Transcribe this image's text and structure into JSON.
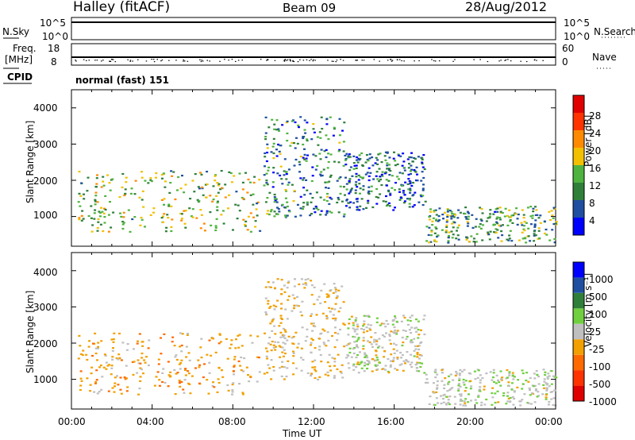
{
  "header": {
    "station": "Halley (fitACF)",
    "beam": "Beam 09",
    "date": "28/Aug/2012"
  },
  "noise_panel": {
    "left_label": "N.Sky",
    "left_ticks": [
      "10^5",
      "10^0"
    ],
    "right_ticks": [
      "10^5",
      "10^0"
    ],
    "right_label": "N.Search"
  },
  "freq_panel": {
    "left_label_1": "Freq.",
    "left_label_2": "[MHz]",
    "left_ticks": [
      "18",
      "8"
    ],
    "right_ticks": [
      "60",
      "0"
    ],
    "right_label": "Nave"
  },
  "cpid": {
    "label": "CPID",
    "value": "normal (fast) 151"
  },
  "x_axis": {
    "title": "Time UT",
    "ticks": [
      "00:00",
      "04:00",
      "08:00",
      "12:00",
      "16:00",
      "20:00",
      "00:00"
    ]
  },
  "chart_data": [
    {
      "type": "heatmap",
      "title": "Power",
      "xlabel": "Time UT",
      "ylabel": "Slant Range [km]",
      "xlim": [
        0,
        24
      ],
      "ylim": [
        180,
        4500
      ],
      "yticks": [
        "1000",
        "2000",
        "3000",
        "4000"
      ],
      "colorbar": {
        "label": "Power [dB]",
        "ticks": [
          "28",
          "24",
          "20",
          "16",
          "12",
          "8",
          "4"
        ],
        "range": [
          0,
          30
        ],
        "colors": [
          "#0000ff",
          "#1f4fa0",
          "#2f7f3a",
          "#4fb33f",
          "#f2c000",
          "#ff8a00",
          "#ff3300",
          "#e00000"
        ]
      },
      "echo_regions": [
        {
          "t_start": 0.3,
          "t_end": 9.3,
          "r_start": 600,
          "r_end": 2300,
          "level": 14
        },
        {
          "t_start": 9.5,
          "t_end": 13.5,
          "r_start": 1000,
          "r_end": 3800,
          "level": 8
        },
        {
          "t_start": 13.5,
          "t_end": 17.5,
          "r_start": 1200,
          "r_end": 2800,
          "level": 6
        },
        {
          "t_start": 17.5,
          "t_end": 24,
          "r_start": 300,
          "r_end": 1300,
          "level": 10
        }
      ]
    },
    {
      "type": "heatmap",
      "title": "Velocity",
      "xlabel": "Time UT",
      "ylabel": "Slant Range [km]",
      "xlim": [
        0,
        24
      ],
      "ylim": [
        180,
        4500
      ],
      "yticks": [
        "1000",
        "2000",
        "3000",
        "4000"
      ],
      "colorbar": {
        "label": "Velocity [m s⁻¹]",
        "ticks": [
          "1000",
          "500",
          "100",
          "25",
          "-25",
          "-100",
          "-500",
          "-1000"
        ],
        "range": [
          -1200,
          1200
        ],
        "colors": [
          "#0000ff",
          "#1f4fa0",
          "#2f7f3a",
          "#6fcf3f",
          "#bfbfbf",
          "#f2a000",
          "#ff6a00",
          "#ff3300",
          "#e00000"
        ]
      },
      "echo_regions": [
        {
          "t_start": 0.3,
          "t_end": 9.3,
          "r_start": 600,
          "r_end": 2300,
          "velocity": -300
        },
        {
          "t_start": 9.5,
          "t_end": 13.5,
          "r_start": 1000,
          "r_end": 3800,
          "velocity": -150
        },
        {
          "t_start": 13.5,
          "t_end": 17.5,
          "r_start": 1200,
          "r_end": 2800,
          "velocity": 0
        },
        {
          "t_start": 17.5,
          "t_end": 24,
          "r_start": 300,
          "r_end": 1300,
          "velocity": 50
        }
      ]
    }
  ]
}
